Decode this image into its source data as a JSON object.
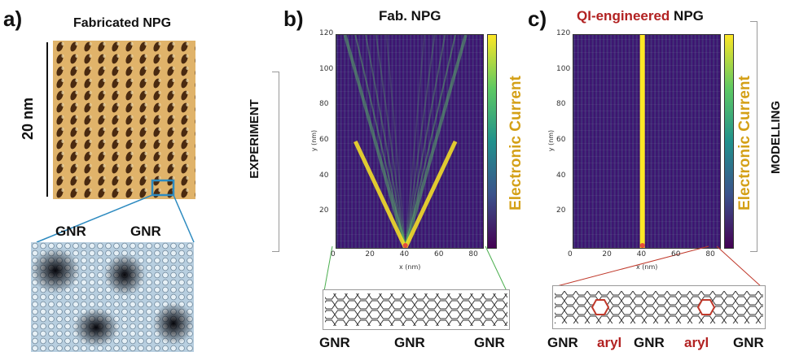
{
  "panel_a": {
    "label": "a)",
    "title": "Fabricated NPG",
    "scale_label": "20 nm",
    "gnr_left": "GNR",
    "gnr_right": "GNR"
  },
  "panel_b": {
    "label": "b)",
    "title": "Fab. NPG",
    "colorbar_label": "Electronic Current",
    "xlabel": "x (nm)",
    "ylabel": "y (nm)",
    "xticks": [
      "0",
      "20",
      "40",
      "60",
      "80"
    ],
    "yticks": [
      "20",
      "40",
      "60",
      "80",
      "100",
      "120"
    ],
    "bottom_labels": [
      "GNR",
      "GNR",
      "GNR"
    ]
  },
  "panel_c": {
    "label": "c)",
    "title_highlight": "QI-engineered",
    "title_rest": " NPG",
    "colorbar_label": "Electronic Current",
    "xlabel": "x (nm)",
    "ylabel": "y (nm)",
    "xticks": [
      "0",
      "20",
      "40",
      "60",
      "80"
    ],
    "yticks": [
      "20",
      "40",
      "60",
      "80",
      "100",
      "120"
    ],
    "bottom_labels": [
      "GNR",
      "aryl",
      "GNR",
      "aryl",
      "GNR"
    ]
  },
  "side_labels": {
    "experiment": "EXPERIMENT",
    "modelling": "MODELLING"
  },
  "colors": {
    "accent_red": "#b22222",
    "current_label": "#d4a017",
    "viridis_low": "#440154",
    "viridis_high": "#fde725"
  },
  "chart_data": [
    {
      "type": "heatmap",
      "title": "Fab. NPG",
      "xlabel": "x (nm)",
      "ylabel": "y (nm)",
      "xlim": [
        0,
        85
      ],
      "ylim": [
        0,
        120
      ],
      "colorbar_label": "Electronic Current",
      "source_x": 40,
      "beam_edges_at_top": [
        5,
        75
      ]
    },
    {
      "type": "heatmap",
      "title": "QI-engineered NPG",
      "xlabel": "x (nm)",
      "ylabel": "y (nm)",
      "xlim": [
        0,
        85
      ],
      "ylim": [
        0,
        120
      ],
      "colorbar_label": "Electronic Current",
      "channel_x": 40
    }
  ]
}
